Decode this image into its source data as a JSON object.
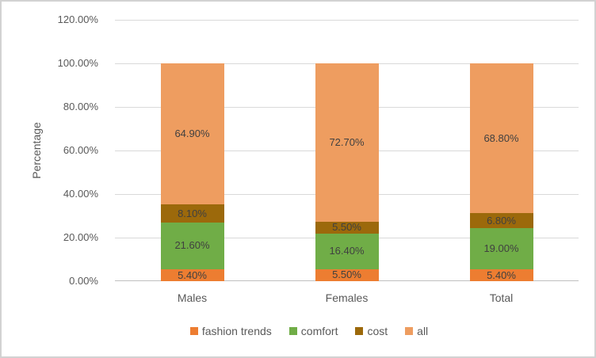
{
  "chart_data": {
    "type": "bar",
    "variant": "stacked-column",
    "title": "",
    "xlabel": "",
    "ylabel": "Percentage",
    "categories": [
      "Males",
      "Females",
      "Total"
    ],
    "series": [
      {
        "name": "fashion trends",
        "color": "#ED7D31",
        "values": [
          5.4,
          5.5,
          5.4
        ]
      },
      {
        "name": "comfort",
        "color": "#70AD47",
        "values": [
          21.6,
          16.4,
          19.0
        ]
      },
      {
        "name": "cost",
        "color": "#9C690B",
        "values": [
          8.1,
          5.5,
          6.8
        ]
      },
      {
        "name": "all",
        "color": "#EE9D60",
        "values": [
          64.9,
          72.7,
          68.8
        ]
      }
    ],
    "data_labels": {
      "fashion trends": [
        "5.40%",
        "5.50%",
        "5.40%"
      ],
      "comfort": [
        "21.60%",
        "16.40%",
        "19.00%"
      ],
      "cost": [
        "8.10%",
        "5.50%",
        "6.80%"
      ],
      "all": [
        "64.90%",
        "72.70%",
        "68.80%"
      ]
    },
    "ylim": [
      0,
      120
    ],
    "yticks": [
      "0.00%",
      "20.00%",
      "40.00%",
      "60.00%",
      "80.00%",
      "100.00%",
      "120.00%"
    ],
    "grid": true,
    "legend_position": "bottom",
    "colors": {
      "gridline": "#D9D9D9",
      "axis_line": "#BFBFBF",
      "tick_text": "#595959",
      "data_label_text": "#404040",
      "frame_border": "#D2D2D2"
    }
  }
}
